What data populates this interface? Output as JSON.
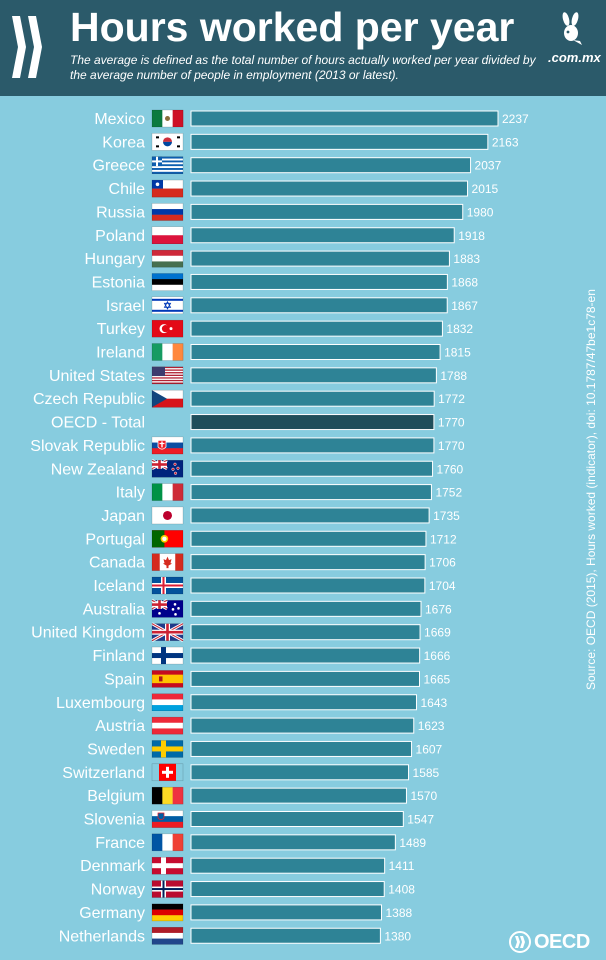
{
  "header": {
    "title": "Hours worked per year",
    "subtitle": "The average is defined as the total number of hours actually worked per year divided by the average number of people in employment (2013 or latest).",
    "brand": ".com.mx"
  },
  "source": "Source: OECD (2015), Hours worked (indicator), doi: 10.1787/47be1c78-en",
  "logo_text": "OECD",
  "colors": {
    "bar": "#2e8396",
    "total_bar": "#1f4e5b",
    "background": "#87ccdf",
    "header": "#2b5a6a"
  },
  "chart_data": {
    "type": "bar",
    "orientation": "horizontal",
    "categories": [
      "Mexico",
      "Korea",
      "Greece",
      "Chile",
      "Russia",
      "Poland",
      "Hungary",
      "Estonia",
      "Israel",
      "Turkey",
      "Ireland",
      "United States",
      "Czech Republic",
      "OECD - Total",
      "Slovak Republic",
      "New Zealand",
      "Italy",
      "Japan",
      "Portugal",
      "Canada",
      "Iceland",
      "Australia",
      "United Kingdom",
      "Finland",
      "Spain",
      "Luxembourg",
      "Austria",
      "Sweden",
      "Switzerland",
      "Belgium",
      "Slovenia",
      "France",
      "Denmark",
      "Norway",
      "Germany",
      "Netherlands"
    ],
    "values": [
      2237,
      2163,
      2037,
      2015,
      1980,
      1918,
      1883,
      1868,
      1867,
      1832,
      1815,
      1788,
      1772,
      1770,
      1770,
      1760,
      1752,
      1735,
      1712,
      1706,
      1704,
      1676,
      1669,
      1666,
      1665,
      1643,
      1623,
      1607,
      1585,
      1570,
      1547,
      1489,
      1411,
      1408,
      1388,
      1380
    ],
    "highlight": "OECD - Total",
    "flags": [
      "mexico-flag-icon",
      "korea-flag-icon",
      "greece-flag-icon",
      "chile-flag-icon",
      "russia-flag-icon",
      "poland-flag-icon",
      "hungary-flag-icon",
      "estonia-flag-icon",
      "israel-flag-icon",
      "turkey-flag-icon",
      "ireland-flag-icon",
      "united-states-flag-icon",
      "czech-republic-flag-icon",
      "",
      "slovak-republic-flag-icon",
      "new-zealand-flag-icon",
      "italy-flag-icon",
      "japan-flag-icon",
      "portugal-flag-icon",
      "canada-flag-icon",
      "iceland-flag-icon",
      "australia-flag-icon",
      "united-kingdom-flag-icon",
      "finland-flag-icon",
      "spain-flag-icon",
      "luxembourg-flag-icon",
      "austria-flag-icon",
      "sweden-flag-icon",
      "switzerland-flag-icon",
      "belgium-flag-icon",
      "slovenia-flag-icon",
      "france-flag-icon",
      "denmark-flag-icon",
      "norway-flag-icon",
      "germany-flag-icon",
      "netherlands-flag-icon"
    ],
    "title": "Hours worked per year",
    "xlabel": "",
    "ylabel": "",
    "grid": false,
    "legend": "none"
  }
}
